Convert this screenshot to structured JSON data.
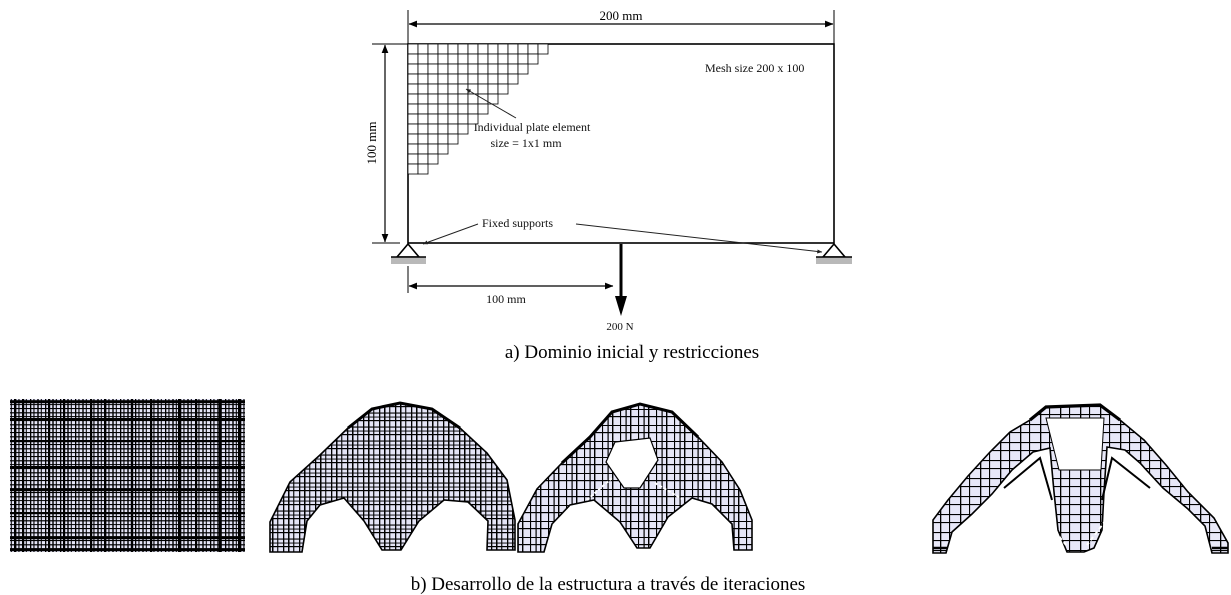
{
  "panel_a": {
    "width_label": "200 mm",
    "height_label": "100 mm",
    "mesh_label": "Mesh size 200 x 100",
    "element_label_line1": "Individual plate element",
    "element_label_line2": "size = 1x1 mm",
    "supports_label": "Fixed supports",
    "load_offset_label": "100 mm",
    "load_label": "200 N",
    "caption": "a)  Dominio inicial y restricciones"
  },
  "panel_b": {
    "caption": "b)  Desarrollo de la estructura a través de iteraciones",
    "iteration_count": 4
  },
  "colors": {
    "ink": "#000000",
    "fill": "#e4e4f6",
    "ground": "#b9b9b9"
  }
}
